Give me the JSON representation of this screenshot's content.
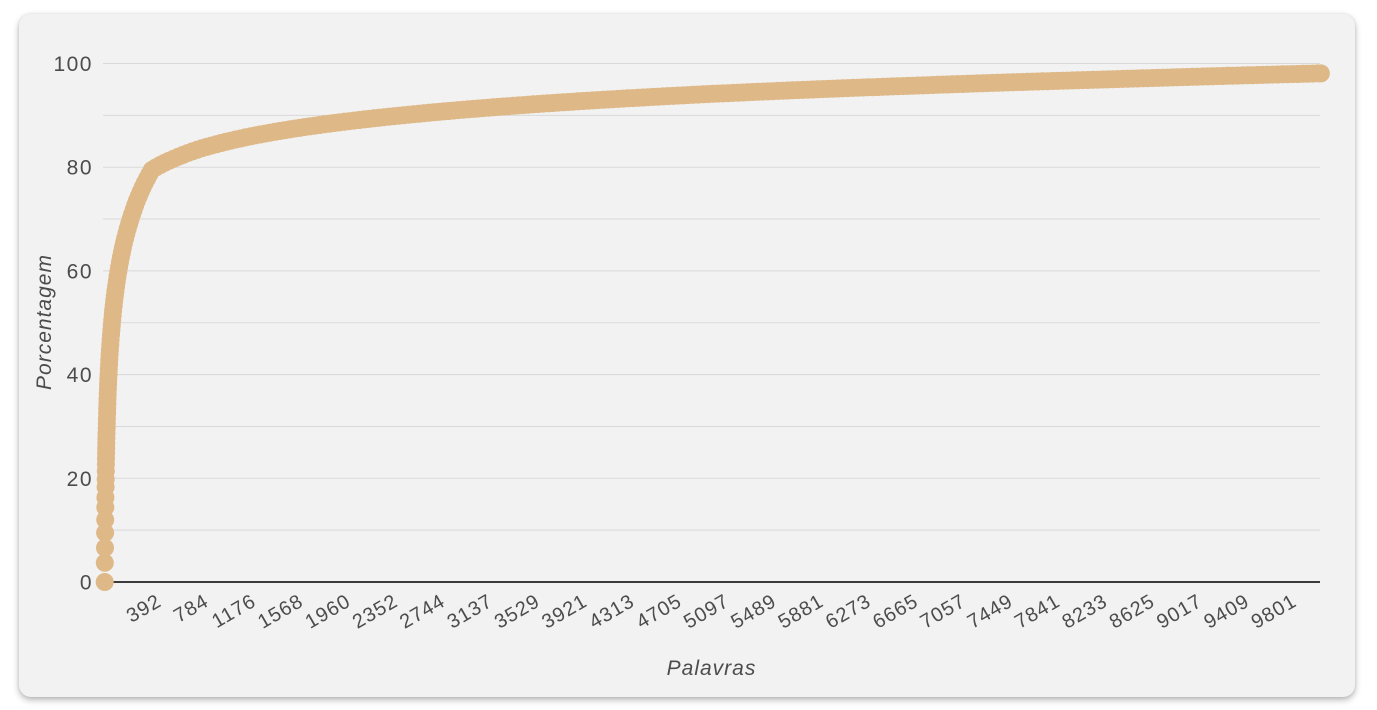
{
  "page": {
    "background": "#ffffff"
  },
  "panel": {
    "background": "#f2f2f2"
  },
  "chart_data": {
    "type": "scatter",
    "title": "",
    "xlabel": "Palavras",
    "ylabel": "Porcentagem",
    "x_tick_labels": [
      "392",
      "784",
      "1176",
      "1568",
      "1960",
      "2352",
      "2744",
      "3137",
      "3529",
      "3921",
      "4313",
      "4705",
      "5097",
      "5489",
      "5881",
      "6273",
      "6665",
      "7057",
      "7449",
      "7841",
      "8233",
      "8625",
      "9017",
      "9409",
      "9801"
    ],
    "y_tick_labels": [
      "0",
      "20",
      "40",
      "60",
      "80",
      "100"
    ],
    "xlim": [
      0,
      10100
    ],
    "ylim": [
      0,
      100
    ],
    "grid": {
      "y_step": 10,
      "visible": true
    },
    "legend": {
      "visible": false
    },
    "marker": {
      "color": "#deb887",
      "radius": 9
    },
    "colors": {
      "grid_line": "#d9d9d9",
      "axis_line": "#3b3b3b",
      "tick_text": "#4c4c4c"
    },
    "points": [
      [
        1,
        0
      ],
      [
        2,
        3.7
      ],
      [
        3,
        6.6
      ],
      [
        4,
        9.5
      ],
      [
        5,
        12.0
      ],
      [
        6,
        14.4
      ],
      [
        7,
        16.3
      ],
      [
        8,
        18.3
      ],
      [
        9,
        19.8
      ],
      [
        10,
        21.4
      ],
      [
        11,
        22.7
      ],
      [
        14,
        26.5
      ],
      [
        18,
        30.5
      ],
      [
        24,
        35.1
      ],
      [
        32,
        39.7
      ],
      [
        45,
        45.1
      ],
      [
        60,
        49.7
      ],
      [
        80,
        54.3
      ],
      [
        110,
        59.3
      ],
      [
        150,
        64.3
      ],
      [
        210,
        69.6
      ],
      [
        290,
        74.8
      ],
      [
        392,
        79.5
      ],
      [
        550,
        81.4
      ],
      [
        800,
        83.6
      ],
      [
        1200,
        85.9
      ],
      [
        1800,
        88.2
      ],
      [
        2600,
        90.3
      ],
      [
        3600,
        92.2
      ],
      [
        5000,
        94.1
      ],
      [
        6800,
        95.8
      ],
      [
        8400,
        97.0
      ],
      [
        10080,
        98.1
      ]
    ]
  }
}
